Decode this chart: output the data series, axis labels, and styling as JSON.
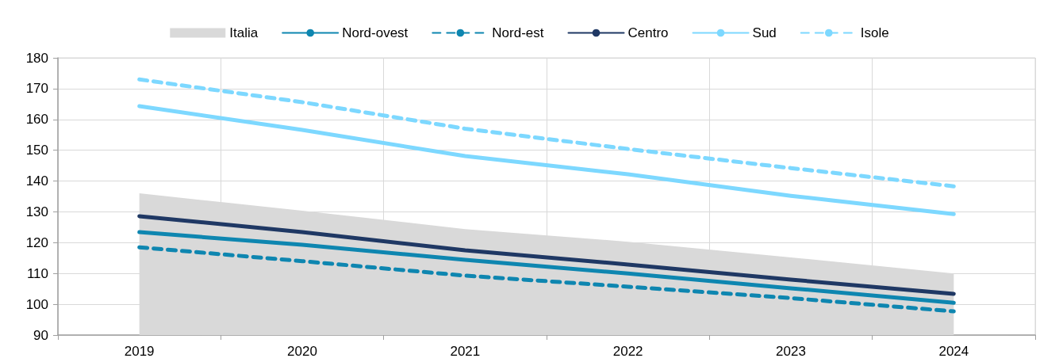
{
  "chart_data": {
    "type": "line",
    "categories": [
      "2019",
      "2020",
      "2021",
      "2022",
      "2023",
      "2024"
    ],
    "series": [
      {
        "name": "Italia",
        "type": "area",
        "color": "#d9d9d9",
        "values": [
          136,
          130.4,
          124.4,
          120.3,
          115.2,
          110
        ]
      },
      {
        "name": "Nord-ovest",
        "color": "#0e86b0",
        "line_style": "solid",
        "values": [
          123.4,
          119.3,
          114.4,
          110,
          105.2,
          100.5
        ]
      },
      {
        "name": "Nord-est",
        "color": "#0e86b0",
        "line_style": "dashed",
        "values": [
          118.5,
          114,
          109.3,
          105.7,
          102,
          97.7
        ]
      },
      {
        "name": "Centro",
        "color": "#1f3864",
        "line_style": "solid",
        "values": [
          128.6,
          123.4,
          117.5,
          112.9,
          108,
          103.4
        ]
      },
      {
        "name": "Sud",
        "color": "#7dd8ff",
        "line_style": "solid",
        "values": [
          164.3,
          156.6,
          148.1,
          142.2,
          135.2,
          129.3
        ]
      },
      {
        "name": "Isole",
        "color": "#7dd8ff",
        "line_style": "dashed",
        "values": [
          173,
          165.6,
          157,
          150.4,
          144.2,
          138.3
        ]
      }
    ],
    "ylim": [
      90,
      180
    ],
    "yticks": [
      90,
      100,
      110,
      120,
      130,
      140,
      150,
      160,
      170,
      180
    ],
    "grid": true,
    "legend": "top",
    "marker": "none"
  }
}
